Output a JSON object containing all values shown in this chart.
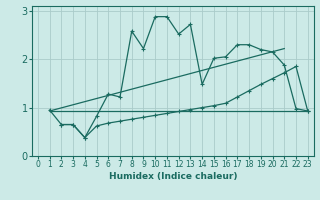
{
  "background_color": "#cceae7",
  "grid_color": "#aaccca",
  "line_color": "#1a6b60",
  "xlim": [
    -0.5,
    23.5
  ],
  "ylim": [
    0,
    3.1
  ],
  "xticks": [
    0,
    1,
    2,
    3,
    4,
    5,
    6,
    7,
    8,
    9,
    10,
    11,
    12,
    13,
    14,
    15,
    16,
    17,
    18,
    19,
    20,
    21,
    22,
    23
  ],
  "yticks": [
    0,
    1,
    2,
    3
  ],
  "xlabel": "Humidex (Indice chaleur)",
  "series1_x": [
    1,
    2,
    3,
    4,
    5,
    6,
    7,
    8,
    9,
    10,
    11,
    12,
    13,
    14,
    15,
    16,
    17,
    18,
    19,
    20,
    21,
    22,
    23
  ],
  "series1_y": [
    0.95,
    0.65,
    0.65,
    0.38,
    0.82,
    1.28,
    1.22,
    2.58,
    2.22,
    2.88,
    2.88,
    2.52,
    2.72,
    1.48,
    2.02,
    2.05,
    2.3,
    2.3,
    2.2,
    2.15,
    1.88,
    0.98,
    0.93
  ],
  "series2_x": [
    2,
    3,
    4,
    5,
    6,
    7,
    8,
    9,
    10,
    11,
    12,
    13,
    14,
    15,
    16,
    17,
    18,
    19,
    20,
    21,
    22,
    23
  ],
  "series2_y": [
    0.65,
    0.65,
    0.38,
    0.62,
    0.68,
    0.72,
    0.76,
    0.8,
    0.84,
    0.88,
    0.92,
    0.96,
    1.0,
    1.04,
    1.09,
    1.22,
    1.35,
    1.48,
    1.6,
    1.72,
    1.85,
    0.93
  ],
  "series3_x": [
    1,
    23
  ],
  "series3_y": [
    0.93,
    0.93
  ],
  "series4_x": [
    1,
    21
  ],
  "series4_y": [
    0.93,
    2.22
  ]
}
